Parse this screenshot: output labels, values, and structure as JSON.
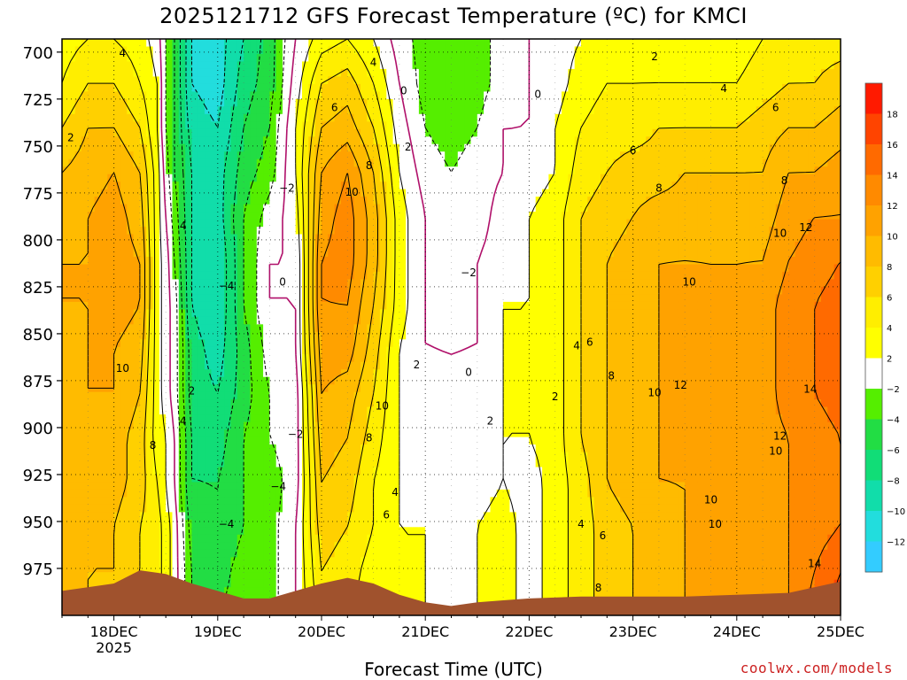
{
  "chart_data": {
    "type": "heatmap",
    "title": "2025121712 GFS Forecast Temperature (ºC) for KMCI",
    "xlabel": "Forecast Time (UTC)",
    "ylabel": "",
    "credit": "coolwx.com/models",
    "x_ticks": [
      {
        "label": "18DEC",
        "sub": "2025",
        "t": 12
      },
      {
        "label": "19DEC",
        "sub": "",
        "t": 36
      },
      {
        "label": "20DEC",
        "sub": "",
        "t": 60
      },
      {
        "label": "21DEC",
        "sub": "",
        "t": 84
      },
      {
        "label": "22DEC",
        "sub": "",
        "t": 108
      },
      {
        "label": "23DEC",
        "sub": "",
        "t": 132
      },
      {
        "label": "24DEC",
        "sub": "",
        "t": 156
      },
      {
        "label": "25DEC",
        "sub": "",
        "t": 180
      }
    ],
    "x_range_hours": [
      0,
      180
    ],
    "y_ticks": [
      700,
      725,
      750,
      775,
      800,
      825,
      850,
      875,
      900,
      925,
      950,
      975
    ],
    "y_range_hPa": [
      693,
      1000
    ],
    "colorbar": {
      "labels": [
        "18",
        "16",
        "14",
        "12",
        "10",
        "8",
        "6",
        "4",
        "2",
        "−2",
        "−4",
        "−6",
        "−8",
        "−10",
        "−12"
      ],
      "colors": [
        "#ff1a00",
        "#ff4400",
        "#ff6a00",
        "#ff8a00",
        "#ffa200",
        "#ffbb00",
        "#ffd000",
        "#ffee00",
        "#ffff00",
        "#ffffff",
        "#55ee00",
        "#22dd44",
        "#11dd77",
        "#11ddaa",
        "#22dddd",
        "#33ccff"
      ]
    },
    "columns": [
      {
        "t": 0,
        "p": 700,
        "ts": [
          3,
          4,
          6,
          8,
          9,
          10,
          10,
          9,
          9,
          9,
          8,
          8,
          8,
          8
        ]
      },
      {
        "t": 6,
        "p": 700,
        "ts": [
          4,
          6,
          8,
          9,
          10,
          10,
          10,
          10,
          10,
          9,
          9,
          8,
          8,
          8
        ]
      },
      {
        "t": 12,
        "p": 700,
        "ts": [
          4,
          6,
          8,
          10,
          11,
          11,
          11,
          10,
          10,
          9,
          9,
          8,
          8,
          7
        ]
      },
      {
        "t": 18,
        "p": 700,
        "ts": [
          3,
          4,
          6,
          8,
          9,
          10,
          10,
          9,
          8,
          7,
          7,
          6,
          6,
          5
        ]
      },
      {
        "t": 22,
        "p": 700,
        "ts": [
          1,
          2,
          2,
          3,
          3,
          3,
          3,
          3,
          3,
          3,
          4,
          5,
          5,
          5
        ]
      },
      {
        "t": 24,
        "p": 700,
        "ts": [
          -2,
          -2,
          -2,
          -1,
          0,
          1,
          1,
          1,
          1,
          2,
          2,
          3,
          3,
          3
        ]
      },
      {
        "t": 26,
        "p": 700,
        "ts": [
          -4,
          -4,
          -4,
          -4,
          -3,
          -2,
          -1,
          -1,
          -1,
          0,
          0,
          1,
          1,
          1
        ]
      },
      {
        "t": 30,
        "p": 700,
        "ts": [
          -10,
          -10,
          -9,
          -8,
          -8,
          -8,
          -8,
          -7,
          -7,
          -6,
          -6,
          -5,
          -4,
          -4
        ]
      },
      {
        "t": 36,
        "p": 700,
        "ts": [
          -11,
          -11,
          -10,
          -9,
          -9,
          -10,
          -10,
          -9,
          -8,
          -7,
          -6,
          -6,
          -5,
          -4
        ]
      },
      {
        "t": 42,
        "p": 700,
        "ts": [
          -8,
          -7,
          -6,
          -5,
          -4,
          -4,
          -4,
          -5,
          -5,
          -4,
          -4,
          -4,
          -3,
          -3
        ]
      },
      {
        "t": 48,
        "p": 700,
        "ts": [
          -5,
          -5,
          -4,
          -3,
          -1,
          0,
          0,
          -1,
          -2,
          -2,
          -3,
          -3,
          -3,
          -3
        ]
      },
      {
        "t": 54,
        "p": 700,
        "ts": [
          0,
          1,
          2,
          2,
          1,
          0,
          0,
          0,
          -1,
          -1,
          -1,
          0,
          0,
          0
        ]
      },
      {
        "t": 60,
        "p": 700,
        "ts": [
          3,
          6,
          8,
          10,
          11,
          12,
          12,
          11,
          10,
          9,
          8,
          7,
          6,
          5
        ]
      },
      {
        "t": 66,
        "p": 700,
        "ts": [
          4,
          7,
          9,
          12,
          13,
          13,
          12,
          11,
          9,
          8,
          7,
          6,
          5,
          4
        ]
      },
      {
        "t": 72,
        "p": 700,
        "ts": [
          2,
          4,
          6,
          8,
          9,
          9,
          8,
          7,
          6,
          5,
          4,
          4,
          3,
          3
        ]
      },
      {
        "t": 78,
        "p": 700,
        "ts": [
          -1,
          0,
          1,
          2,
          3,
          3,
          3,
          2,
          2,
          2,
          2,
          2,
          2,
          2
        ]
      },
      {
        "t": 84,
        "p": 700,
        "ts": [
          -3,
          -3,
          -2,
          -1,
          0,
          0,
          0,
          0,
          1,
          1,
          1,
          2,
          2,
          2
        ]
      },
      {
        "t": 90,
        "p": 700,
        "ts": [
          -4,
          -4,
          -3,
          -2,
          -1,
          -1,
          -1,
          0,
          0,
          0,
          1,
          1,
          1,
          1
        ]
      },
      {
        "t": 96,
        "p": 700,
        "ts": [
          -3,
          -3,
          -2,
          -1,
          -1,
          0,
          0,
          0,
          1,
          1,
          1,
          2,
          2,
          2
        ]
      },
      {
        "t": 102,
        "p": 700,
        "ts": [
          -1,
          -1,
          0,
          0,
          1,
          1,
          2,
          2,
          2,
          2,
          2,
          3,
          3,
          3
        ]
      },
      {
        "t": 108,
        "p": 700,
        "ts": [
          0,
          0,
          0,
          1,
          2,
          2,
          2,
          2,
          2,
          2,
          1,
          1,
          1,
          1
        ]
      },
      {
        "t": 114,
        "p": 700,
        "ts": [
          1,
          1,
          2,
          2,
          3,
          3,
          3,
          3,
          3,
          3,
          3,
          3,
          3,
          3
        ]
      },
      {
        "t": 120,
        "p": 700,
        "ts": [
          2,
          3,
          4,
          5,
          6,
          6,
          6,
          6,
          6,
          6,
          5,
          5,
          5,
          5
        ]
      },
      {
        "t": 126,
        "p": 700,
        "ts": [
          3,
          4,
          5,
          6,
          7,
          8,
          8,
          8,
          8,
          8,
          8,
          7,
          7,
          7
        ]
      },
      {
        "t": 132,
        "p": 700,
        "ts": [
          3,
          4,
          5,
          7,
          8,
          9,
          9,
          9,
          9,
          9,
          9,
          8,
          8,
          8
        ]
      },
      {
        "t": 138,
        "p": 700,
        "ts": [
          3,
          4,
          6,
          7,
          9,
          10,
          10,
          10,
          10,
          10,
          10,
          9,
          9,
          9
        ]
      },
      {
        "t": 144,
        "p": 700,
        "ts": [
          3,
          4,
          6,
          8,
          9,
          10,
          11,
          11,
          11,
          11,
          10,
          10,
          10,
          10
        ]
      },
      {
        "t": 150,
        "p": 700,
        "ts": [
          3,
          4,
          6,
          8,
          9,
          10,
          10,
          10,
          10,
          10,
          10,
          10,
          10,
          10
        ]
      },
      {
        "t": 156,
        "p": 700,
        "ts": [
          3,
          4,
          6,
          8,
          9,
          10,
          10,
          10,
          10,
          10,
          10,
          10,
          10,
          10
        ]
      },
      {
        "t": 162,
        "p": 700,
        "ts": [
          4,
          5,
          7,
          8,
          9,
          10,
          11,
          11,
          11,
          11,
          11,
          11,
          11,
          11
        ]
      },
      {
        "t": 168,
        "p": 700,
        "ts": [
          4,
          6,
          8,
          10,
          11,
          12,
          13,
          13,
          13,
          12,
          12,
          12,
          12,
          12
        ]
      },
      {
        "t": 174,
        "p": 700,
        "ts": [
          5,
          6,
          8,
          10,
          12,
          13,
          14,
          14,
          14,
          13,
          13,
          13,
          14,
          15
        ]
      },
      {
        "t": 180,
        "p": 700,
        "ts": [
          5,
          7,
          9,
          11,
          12,
          14,
          15,
          15,
          15,
          14,
          14,
          14,
          16,
          17
        ]
      }
    ],
    "terrain_hPa": [
      {
        "t": 0,
        "p": 987
      },
      {
        "t": 12,
        "p": 983
      },
      {
        "t": 18,
        "p": 976
      },
      {
        "t": 24,
        "p": 978
      },
      {
        "t": 30,
        "p": 983
      },
      {
        "t": 36,
        "p": 987
      },
      {
        "t": 42,
        "p": 991
      },
      {
        "t": 48,
        "p": 991
      },
      {
        "t": 54,
        "p": 987
      },
      {
        "t": 60,
        "p": 983
      },
      {
        "t": 66,
        "p": 980
      },
      {
        "t": 72,
        "p": 983
      },
      {
        "t": 78,
        "p": 989
      },
      {
        "t": 84,
        "p": 993
      },
      {
        "t": 90,
        "p": 995
      },
      {
        "t": 96,
        "p": 993
      },
      {
        "t": 102,
        "p": 992
      },
      {
        "t": 108,
        "p": 991
      },
      {
        "t": 120,
        "p": 990
      },
      {
        "t": 132,
        "p": 990
      },
      {
        "t": 144,
        "p": 990
      },
      {
        "t": 156,
        "p": 989
      },
      {
        "t": 168,
        "p": 988
      },
      {
        "t": 174,
        "p": 985
      },
      {
        "t": 180,
        "p": 982
      }
    ],
    "contour_labels": [
      {
        "text": "4",
        "t": 14,
        "p": 700
      },
      {
        "text": "2",
        "t": 2,
        "p": 745
      },
      {
        "text": "4",
        "t": 28,
        "p": 792
      },
      {
        "text": "10",
        "t": 14,
        "p": 868
      },
      {
        "text": "8",
        "t": 21,
        "p": 909
      },
      {
        "text": "2",
        "t": 30,
        "p": 880
      },
      {
        "text": "4",
        "t": 28,
        "p": 896
      },
      {
        "text": "-4",
        "t": 38,
        "p": 824
      },
      {
        "text": "-4",
        "t": 38,
        "p": 951
      },
      {
        "text": "-2",
        "t": 52,
        "p": 772
      },
      {
        "text": "0",
        "t": 51,
        "p": 822
      },
      {
        "text": "-2",
        "t": 54,
        "p": 903
      },
      {
        "text": "-4",
        "t": 50,
        "p": 931
      },
      {
        "text": "6",
        "t": 63,
        "p": 729
      },
      {
        "text": "4",
        "t": 72,
        "p": 705
      },
      {
        "text": "8",
        "t": 71,
        "p": 760
      },
      {
        "text": "10",
        "t": 67,
        "p": 774
      },
      {
        "text": "2",
        "t": 80,
        "p": 750
      },
      {
        "text": "0",
        "t": 79,
        "p": 720
      },
      {
        "text": "10",
        "t": 74,
        "p": 888
      },
      {
        "text": "8",
        "t": 71,
        "p": 905
      },
      {
        "text": "6",
        "t": 75,
        "p": 946
      },
      {
        "text": "4",
        "t": 77,
        "p": 934
      },
      {
        "text": "2",
        "t": 82,
        "p": 866
      },
      {
        "text": "-2",
        "t": 94,
        "p": 817
      },
      {
        "text": "0",
        "t": 94,
        "p": 870
      },
      {
        "text": "2",
        "t": 99,
        "p": 896
      },
      {
        "text": "0",
        "t": 110,
        "p": 722
      },
      {
        "text": "2",
        "t": 114,
        "p": 883
      },
      {
        "text": "4",
        "t": 120,
        "p": 951
      },
      {
        "text": "4",
        "t": 119,
        "p": 856
      },
      {
        "text": "6",
        "t": 122,
        "p": 854
      },
      {
        "text": "2",
        "t": 137,
        "p": 702
      },
      {
        "text": "4",
        "t": 153,
        "p": 719
      },
      {
        "text": "6",
        "t": 165,
        "p": 729
      },
      {
        "text": "6",
        "t": 132,
        "p": 752
      },
      {
        "text": "8",
        "t": 138,
        "p": 772
      },
      {
        "text": "8",
        "t": 167,
        "p": 768
      },
      {
        "text": "10",
        "t": 145,
        "p": 822
      },
      {
        "text": "10",
        "t": 137,
        "p": 881
      },
      {
        "text": "12",
        "t": 143,
        "p": 877
      },
      {
        "text": "8",
        "t": 127,
        "p": 872
      },
      {
        "text": "6",
        "t": 125,
        "p": 957
      },
      {
        "text": "8",
        "t": 124,
        "p": 985
      },
      {
        "text": "10",
        "t": 150,
        "p": 938
      },
      {
        "text": "10",
        "t": 151,
        "p": 951
      },
      {
        "text": "10",
        "t": 166,
        "p": 796
      },
      {
        "text": "12",
        "t": 172,
        "p": 793
      },
      {
        "text": "14",
        "t": 173,
        "p": 879
      },
      {
        "text": "12",
        "t": 166,
        "p": 904
      },
      {
        "text": "10",
        "t": 165,
        "p": 912
      },
      {
        "text": "14",
        "t": 174,
        "p": 972
      }
    ]
  }
}
